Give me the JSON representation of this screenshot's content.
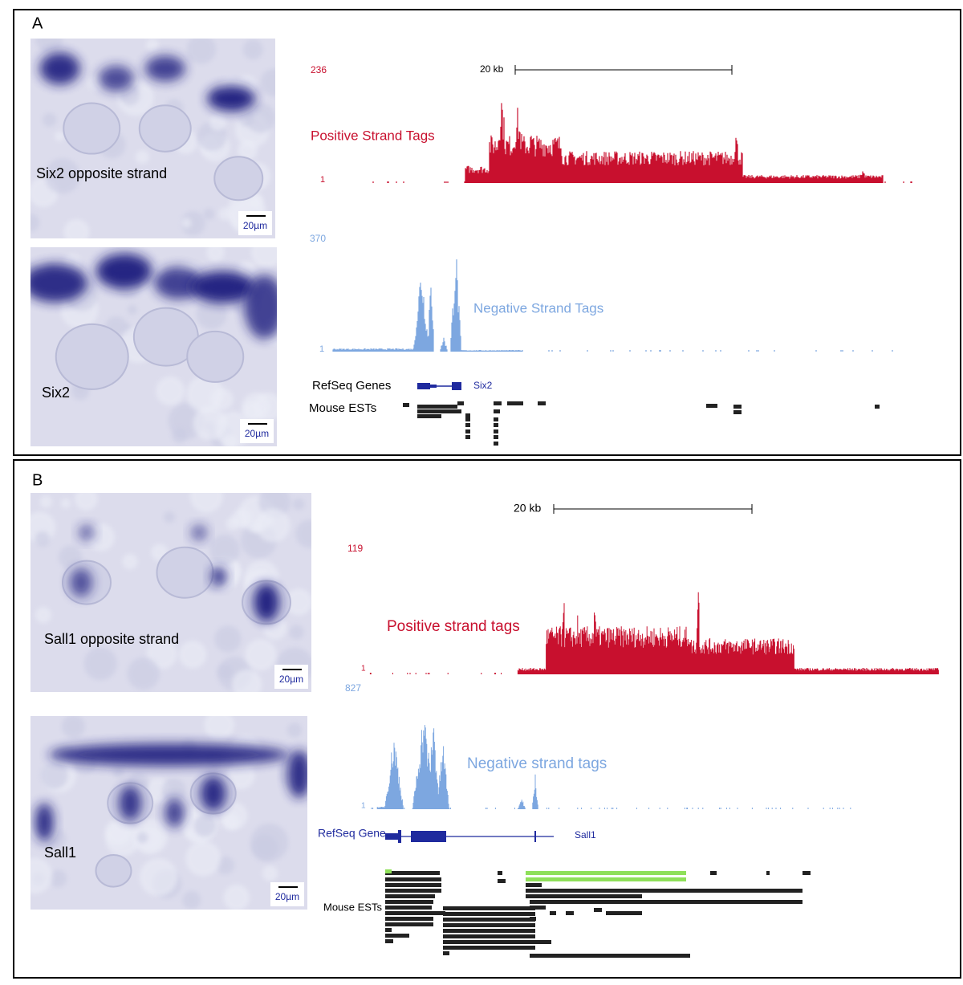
{
  "panels": [
    {
      "label": "A",
      "images": [
        {
          "caption": "Six2 opposite strand",
          "scale_bar": "20µm"
        },
        {
          "caption": "Six2",
          "scale_bar": "20µm"
        }
      ],
      "browser": {
        "scale_label": "20 kb",
        "positive": {
          "max": "236",
          "min": "1",
          "label": "Positive Strand Tags"
        },
        "negative": {
          "max": "370",
          "min": "1",
          "label": "Negative Strand Tags"
        },
        "gene_track_label": "RefSeq Genes",
        "gene_name": "Six2",
        "est_track_label": "Mouse ESTs"
      }
    },
    {
      "label": "B",
      "images": [
        {
          "caption": "Sall1 opposite strand",
          "scale_bar": "20µm"
        },
        {
          "caption": "Sall1",
          "scale_bar": "20µm"
        }
      ],
      "browser": {
        "scale_label": "20 kb",
        "positive": {
          "max": "119",
          "min": "1",
          "label": "Positive strand tags"
        },
        "negative": {
          "max": "827",
          "min": "1",
          "label": "Negative strand tags"
        },
        "gene_track_label": "RefSeq Gene",
        "gene_name": "Sall1",
        "est_track_label": "Mouse ESTs"
      }
    }
  ]
}
